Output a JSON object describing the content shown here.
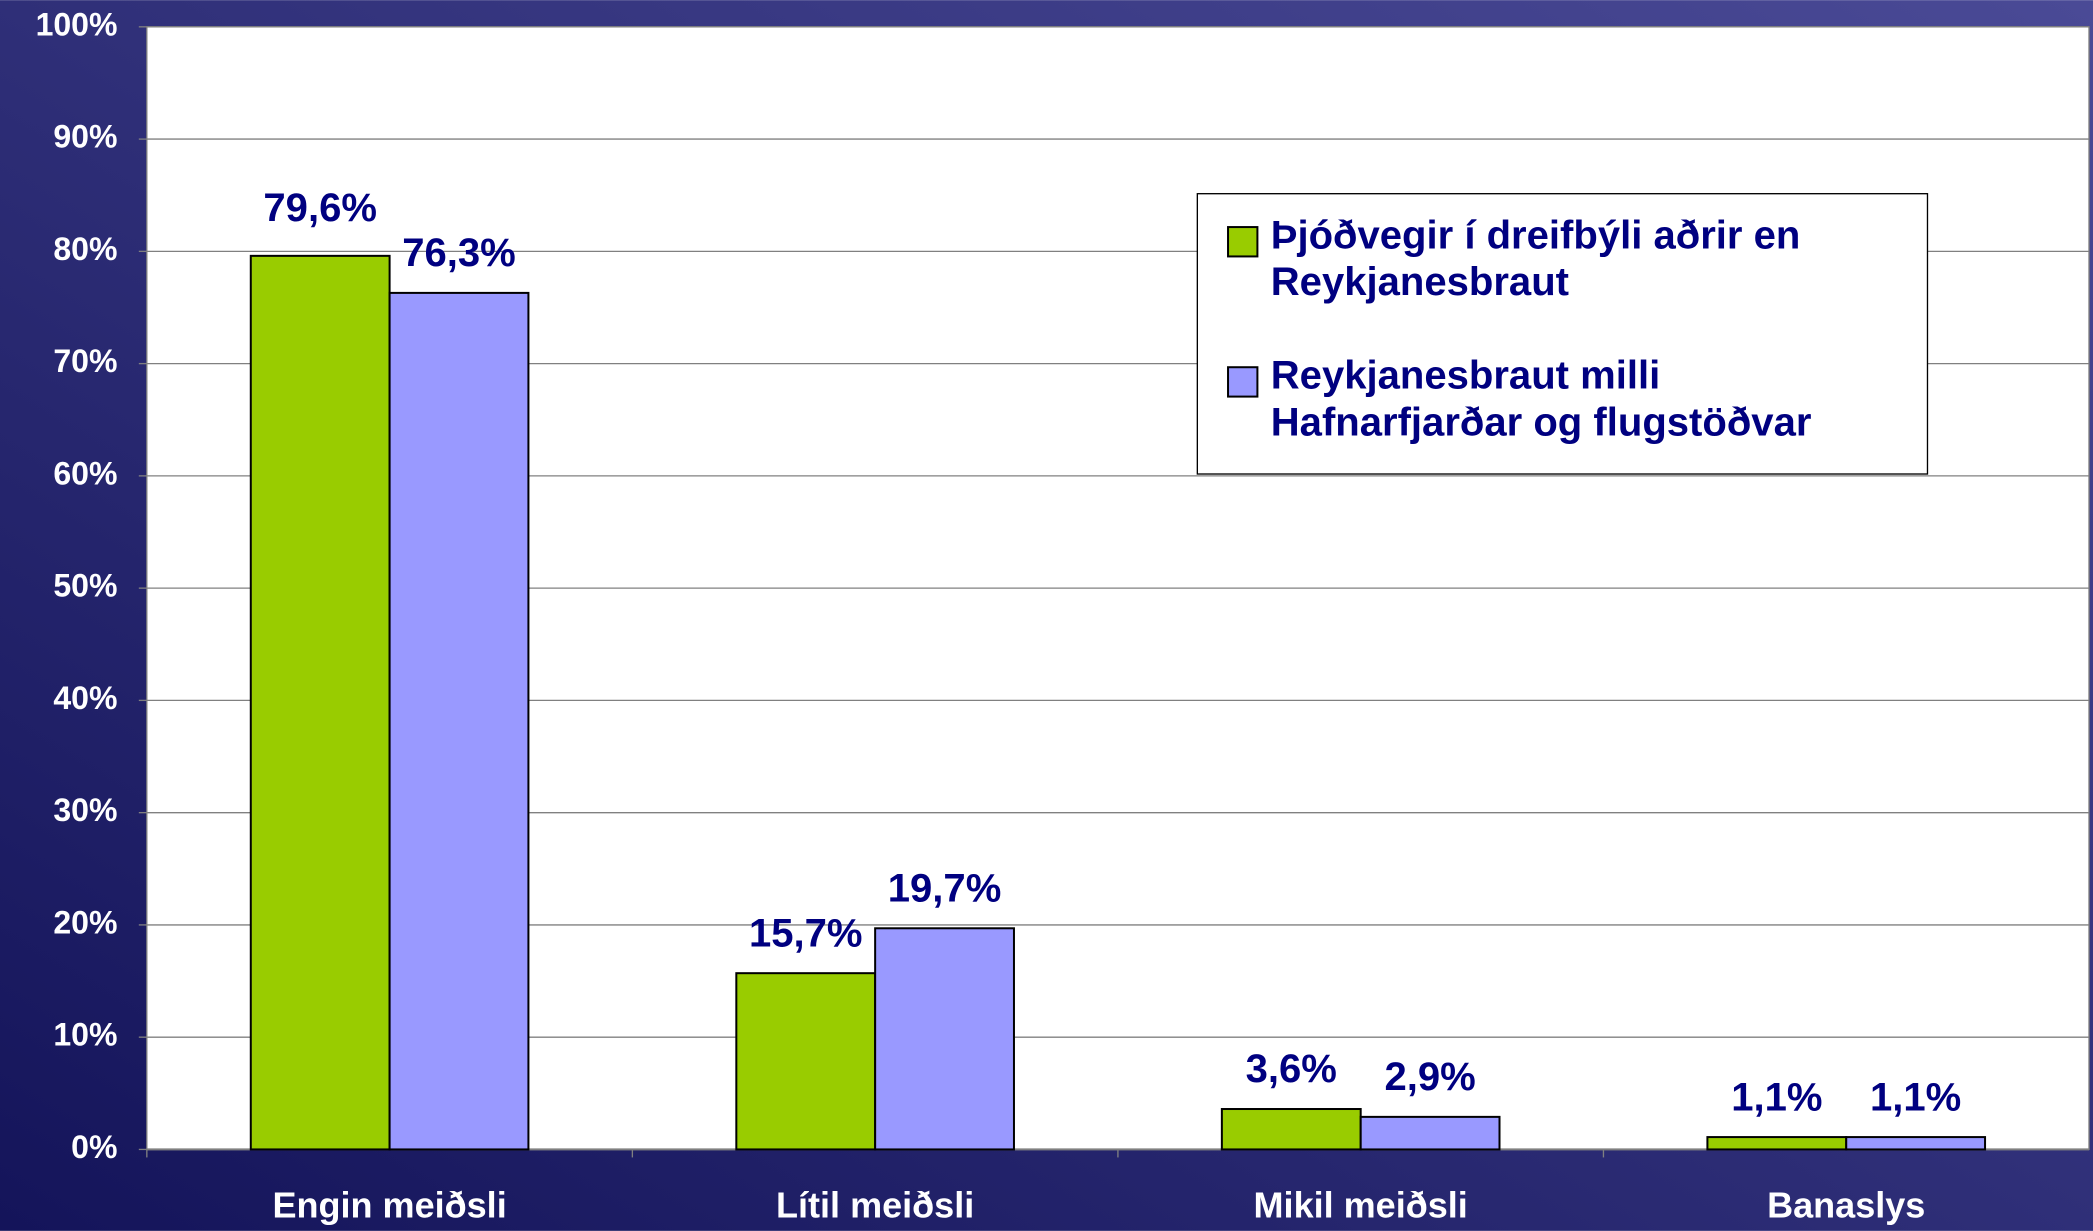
{
  "chart_data": {
    "type": "bar",
    "categories": [
      "Engin meiðsli",
      "Lítil meiðsli",
      "Mikil meiðsli",
      "Banaslys"
    ],
    "series": [
      {
        "name": "Þjóðvegir í dreifbýli aðrir en Reykjanesbraut",
        "color": "#99cc00",
        "values": [
          79.6,
          15.7,
          3.6,
          1.1
        ],
        "value_labels": [
          "79,6%",
          "15,7%",
          "3,6%",
          "1,1%"
        ]
      },
      {
        "name": "Reykjanesbraut milli Hafnarfjarðar og flugstöðvar",
        "color": "#9999ff",
        "values": [
          76.3,
          19.7,
          2.9,
          1.1
        ],
        "value_labels": [
          "76,3%",
          "19,7%",
          "2,9%",
          "1,1%"
        ]
      }
    ],
    "ylim": [
      0,
      100
    ],
    "yticks": [
      {
        "value": 0,
        "label": "0%"
      },
      {
        "value": 10,
        "label": "10%"
      },
      {
        "value": 20,
        "label": "20%"
      },
      {
        "value": 30,
        "label": "30%"
      },
      {
        "value": 40,
        "label": "40%"
      },
      {
        "value": 50,
        "label": "50%"
      },
      {
        "value": 60,
        "label": "60%"
      },
      {
        "value": 70,
        "label": "70%"
      },
      {
        "value": 80,
        "label": "80%"
      },
      {
        "value": 90,
        "label": "90%"
      },
      {
        "value": 100,
        "label": "100%"
      }
    ],
    "grid": true,
    "legend": "upper right"
  }
}
